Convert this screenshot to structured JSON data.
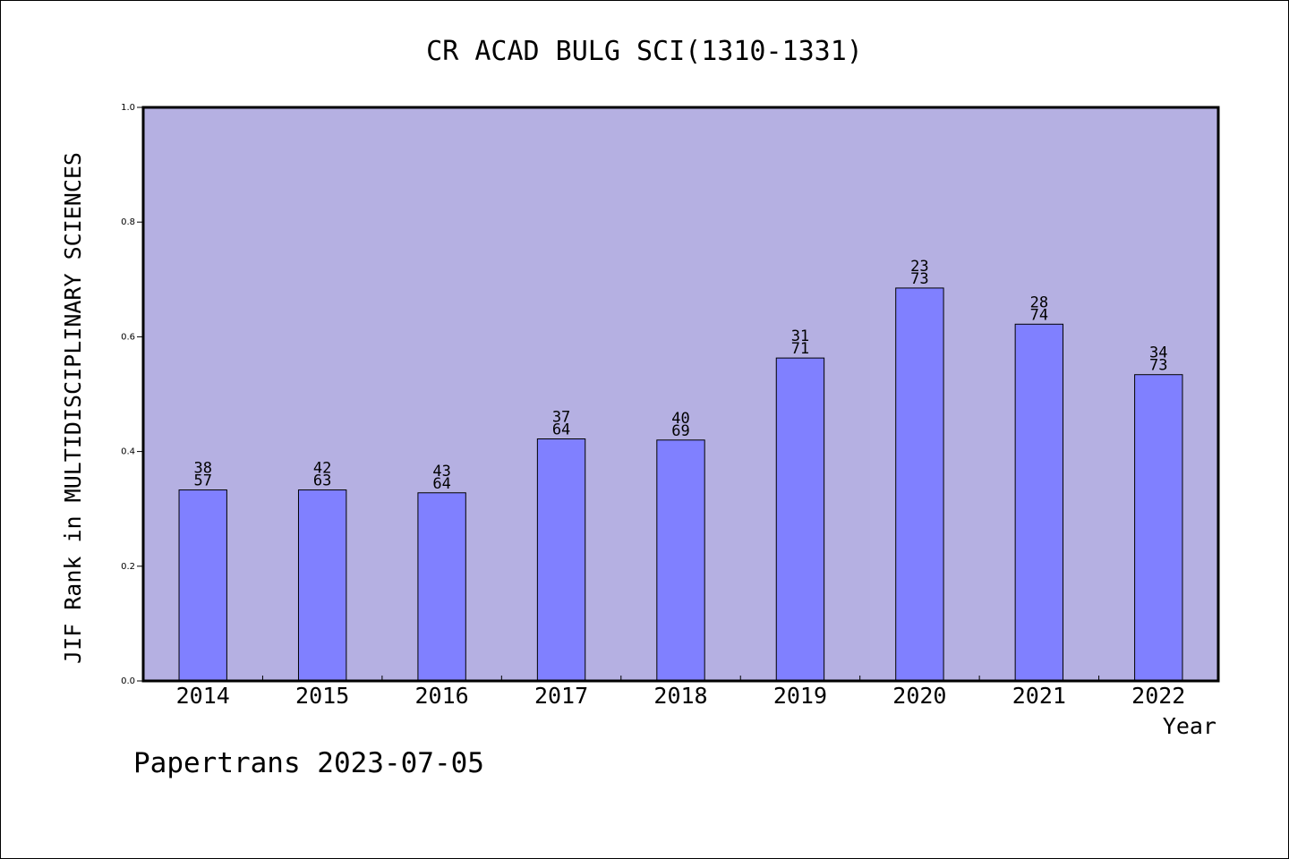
{
  "chart_data": {
    "type": "bar",
    "title": "CR ACAD BULG SCI(1310-1331)",
    "xlabel": "Year",
    "ylabel": "JIF Rank in MULTIDISCIPLINARY SCIENCES",
    "ylim": [
      0,
      1.0
    ],
    "yticks": [
      "0.0",
      "0.2",
      "0.4",
      "0.6",
      "0.8",
      "1.0"
    ],
    "categories": [
      "2014",
      "2015",
      "2016",
      "2017",
      "2018",
      "2019",
      "2020",
      "2021",
      "2022"
    ],
    "values": [
      0.333,
      0.333,
      0.328,
      0.422,
      0.42,
      0.563,
      0.685,
      0.622,
      0.534
    ],
    "labels": [
      {
        "rank": "38",
        "total": "57"
      },
      {
        "rank": "42",
        "total": "63"
      },
      {
        "rank": "43",
        "total": "64"
      },
      {
        "rank": "37",
        "total": "64"
      },
      {
        "rank": "40",
        "total": "69"
      },
      {
        "rank": "31",
        "total": "71"
      },
      {
        "rank": "23",
        "total": "73"
      },
      {
        "rank": "28",
        "total": "74"
      },
      {
        "rank": "34",
        "total": "73"
      }
    ],
    "grid": false,
    "colors": {
      "plot_background": "#b5b0e2",
      "bar_fill": "#8080ff",
      "bar_edge": "#000000"
    }
  },
  "footer": "Papertrans 2023-07-05"
}
